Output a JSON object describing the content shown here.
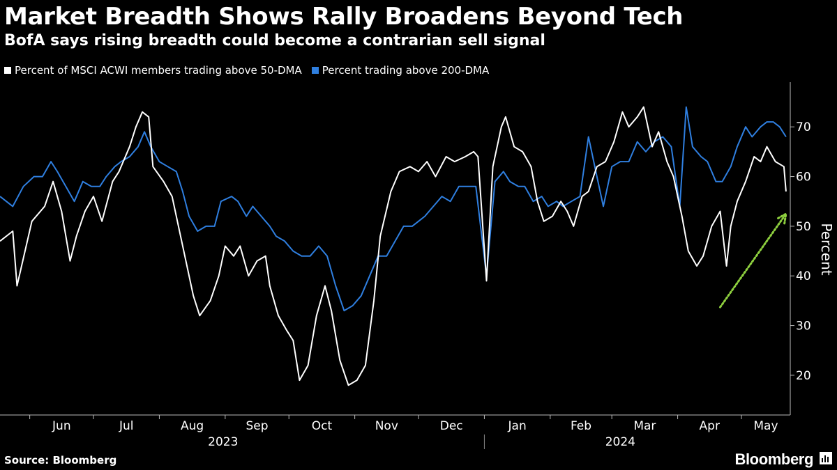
{
  "title": "Market Breadth Shows Rally Broadens Beyond Tech",
  "subtitle": "BofA says rising breadth could become a contrarian sell signal",
  "source": "Source: Bloomberg",
  "brand": "Bloomberg",
  "chart_data": {
    "type": "line",
    "title": "Market Breadth Shows Rally Broadens Beyond Tech",
    "subtitle": "BofA says rising breadth could become a contrarian sell signal",
    "ylabel": "Percent",
    "ylim": [
      12,
      79
    ],
    "yticks": [
      20,
      30,
      40,
      50,
      60,
      70
    ],
    "y_axis_side": "right",
    "grid": false,
    "legend_position": "top-left",
    "x_range": [
      "2023-05-18",
      "2024-05-24"
    ],
    "x_tick_labels": [
      "Jun",
      "Jul",
      "Aug",
      "Sep",
      "Oct",
      "Nov",
      "Dec",
      "Jan",
      "Feb",
      "Mar",
      "Apr",
      "May"
    ],
    "x_year_labels": [
      "2023",
      "2024"
    ],
    "series": [
      {
        "name": "Percent of MSCI ACWI members trading above 50-DMA",
        "color": "#ffffff",
        "points": [
          [
            "2023-05-18",
            47
          ],
          [
            "2023-05-24",
            49
          ],
          [
            "2023-05-26",
            38
          ],
          [
            "2023-06-02",
            51
          ],
          [
            "2023-06-08",
            54
          ],
          [
            "2023-06-12",
            59
          ],
          [
            "2023-06-16",
            53
          ],
          [
            "2023-06-20",
            43
          ],
          [
            "2023-06-23",
            48
          ],
          [
            "2023-06-27",
            53
          ],
          [
            "2023-07-01",
            56
          ],
          [
            "2023-07-05",
            51
          ],
          [
            "2023-07-10",
            59
          ],
          [
            "2023-07-13",
            61
          ],
          [
            "2023-07-18",
            66
          ],
          [
            "2023-07-21",
            70
          ],
          [
            "2023-07-24",
            73
          ],
          [
            "2023-07-27",
            72
          ],
          [
            "2023-07-29",
            62
          ],
          [
            "2023-08-03",
            59
          ],
          [
            "2023-08-07",
            56
          ],
          [
            "2023-08-11",
            48
          ],
          [
            "2023-08-17",
            36
          ],
          [
            "2023-08-20",
            32
          ],
          [
            "2023-08-25",
            35
          ],
          [
            "2023-08-29",
            40
          ],
          [
            "2023-09-01",
            46
          ],
          [
            "2023-09-05",
            44
          ],
          [
            "2023-09-08",
            46
          ],
          [
            "2023-09-12",
            40
          ],
          [
            "2023-09-16",
            43
          ],
          [
            "2023-09-20",
            44
          ],
          [
            "2023-09-22",
            38
          ],
          [
            "2023-09-26",
            32
          ],
          [
            "2023-09-30",
            29
          ],
          [
            "2023-10-03",
            27
          ],
          [
            "2023-10-06",
            19
          ],
          [
            "2023-10-10",
            22
          ],
          [
            "2023-10-14",
            32
          ],
          [
            "2023-10-18",
            38
          ],
          [
            "2023-10-21",
            33
          ],
          [
            "2023-10-25",
            23
          ],
          [
            "2023-10-29",
            18
          ],
          [
            "2023-11-02",
            19
          ],
          [
            "2023-11-06",
            22
          ],
          [
            "2023-11-10",
            35
          ],
          [
            "2023-11-13",
            48
          ],
          [
            "2023-11-18",
            57
          ],
          [
            "2023-11-22",
            61
          ],
          [
            "2023-11-27",
            62
          ],
          [
            "2023-12-01",
            61
          ],
          [
            "2023-12-05",
            63
          ],
          [
            "2023-12-09",
            60
          ],
          [
            "2023-12-14",
            64
          ],
          [
            "2023-12-18",
            63
          ],
          [
            "2023-12-23",
            64
          ],
          [
            "2023-12-27",
            65
          ],
          [
            "2023-12-29",
            64
          ],
          [
            "2024-01-02",
            39
          ],
          [
            "2024-01-05",
            62
          ],
          [
            "2024-01-09",
            70
          ],
          [
            "2024-01-11",
            72
          ],
          [
            "2024-01-15",
            66
          ],
          [
            "2024-01-19",
            65
          ],
          [
            "2024-01-23",
            62
          ],
          [
            "2024-01-26",
            55
          ],
          [
            "2024-01-29",
            51
          ],
          [
            "2024-02-02",
            52
          ],
          [
            "2024-02-06",
            55
          ],
          [
            "2024-02-09",
            53
          ],
          [
            "2024-02-12",
            50
          ],
          [
            "2024-02-16",
            56
          ],
          [
            "2024-02-19",
            57
          ],
          [
            "2024-02-23",
            62
          ],
          [
            "2024-02-27",
            63
          ],
          [
            "2024-03-02",
            67
          ],
          [
            "2024-03-06",
            73
          ],
          [
            "2024-03-09",
            70
          ],
          [
            "2024-03-13",
            72
          ],
          [
            "2024-03-16",
            74
          ],
          [
            "2024-03-20",
            66
          ],
          [
            "2024-03-23",
            69
          ],
          [
            "2024-03-27",
            63
          ],
          [
            "2024-03-30",
            60
          ],
          [
            "2024-04-03",
            52
          ],
          [
            "2024-04-06",
            45
          ],
          [
            "2024-04-10",
            42
          ],
          [
            "2024-04-13",
            44
          ],
          [
            "2024-04-17",
            50
          ],
          [
            "2024-04-21",
            53
          ],
          [
            "2024-04-24",
            42
          ],
          [
            "2024-04-26",
            50
          ],
          [
            "2024-04-29",
            55
          ],
          [
            "2024-05-03",
            59
          ],
          [
            "2024-05-07",
            64
          ],
          [
            "2024-05-10",
            63
          ],
          [
            "2024-05-13",
            66
          ],
          [
            "2024-05-17",
            63
          ],
          [
            "2024-05-21",
            62
          ],
          [
            "2024-05-22",
            57
          ]
        ]
      },
      {
        "name": "Percent trading above 200-DMA",
        "color": "#2f7fe0",
        "points": [
          [
            "2023-05-18",
            56
          ],
          [
            "2023-05-24",
            54
          ],
          [
            "2023-05-29",
            58
          ],
          [
            "2023-06-03",
            60
          ],
          [
            "2023-06-07",
            60
          ],
          [
            "2023-06-11",
            63
          ],
          [
            "2023-06-14",
            61
          ],
          [
            "2023-06-18",
            58
          ],
          [
            "2023-06-22",
            55
          ],
          [
            "2023-06-26",
            59
          ],
          [
            "2023-06-30",
            58
          ],
          [
            "2023-07-04",
            58
          ],
          [
            "2023-07-07",
            60
          ],
          [
            "2023-07-11",
            62
          ],
          [
            "2023-07-14",
            63
          ],
          [
            "2023-07-18",
            64
          ],
          [
            "2023-07-22",
            66
          ],
          [
            "2023-07-25",
            69
          ],
          [
            "2023-07-28",
            66
          ],
          [
            "2023-08-01",
            63
          ],
          [
            "2023-08-05",
            62
          ],
          [
            "2023-08-09",
            61
          ],
          [
            "2023-08-12",
            57
          ],
          [
            "2023-08-15",
            52
          ],
          [
            "2023-08-19",
            49
          ],
          [
            "2023-08-23",
            50
          ],
          [
            "2023-08-27",
            50
          ],
          [
            "2023-08-30",
            55
          ],
          [
            "2023-09-04",
            56
          ],
          [
            "2023-09-07",
            55
          ],
          [
            "2023-09-11",
            52
          ],
          [
            "2023-09-14",
            54
          ],
          [
            "2023-09-18",
            52
          ],
          [
            "2023-09-22",
            50
          ],
          [
            "2023-09-25",
            48
          ],
          [
            "2023-09-29",
            47
          ],
          [
            "2023-10-03",
            45
          ],
          [
            "2023-10-07",
            44
          ],
          [
            "2023-10-11",
            44
          ],
          [
            "2023-10-15",
            46
          ],
          [
            "2023-10-19",
            44
          ],
          [
            "2023-10-23",
            38
          ],
          [
            "2023-10-27",
            33
          ],
          [
            "2023-10-31",
            34
          ],
          [
            "2023-11-04",
            36
          ],
          [
            "2023-11-08",
            40
          ],
          [
            "2023-11-12",
            44
          ],
          [
            "2023-11-16",
            44
          ],
          [
            "2023-11-20",
            47
          ],
          [
            "2023-11-24",
            50
          ],
          [
            "2023-11-28",
            50
          ],
          [
            "2023-12-01",
            51
          ],
          [
            "2023-12-04",
            52
          ],
          [
            "2023-12-08",
            54
          ],
          [
            "2023-12-12",
            56
          ],
          [
            "2023-12-16",
            55
          ],
          [
            "2023-12-20",
            58
          ],
          [
            "2023-12-24",
            58
          ],
          [
            "2023-12-28",
            58
          ],
          [
            "2024-01-02",
            40
          ],
          [
            "2024-01-06",
            59
          ],
          [
            "2024-01-10",
            61
          ],
          [
            "2024-01-13",
            59
          ],
          [
            "2024-01-17",
            58
          ],
          [
            "2024-01-20",
            58
          ],
          [
            "2024-01-24",
            55
          ],
          [
            "2024-01-28",
            56
          ],
          [
            "2024-01-31",
            54
          ],
          [
            "2024-02-04",
            55
          ],
          [
            "2024-02-07",
            54
          ],
          [
            "2024-02-11",
            55
          ],
          [
            "2024-02-15",
            56
          ],
          [
            "2024-02-19",
            68
          ],
          [
            "2024-02-23",
            60
          ],
          [
            "2024-02-26",
            54
          ],
          [
            "2024-03-01",
            62
          ],
          [
            "2024-03-05",
            63
          ],
          [
            "2024-03-09",
            63
          ],
          [
            "2024-03-13",
            67
          ],
          [
            "2024-03-17",
            65
          ],
          [
            "2024-03-21",
            67
          ],
          [
            "2024-03-25",
            68
          ],
          [
            "2024-03-29",
            66
          ],
          [
            "2024-04-02",
            54
          ],
          [
            "2024-04-05",
            74
          ],
          [
            "2024-04-08",
            66
          ],
          [
            "2024-04-12",
            64
          ],
          [
            "2024-04-15",
            63
          ],
          [
            "2024-04-19",
            59
          ],
          [
            "2024-04-22",
            59
          ],
          [
            "2024-04-26",
            62
          ],
          [
            "2024-04-29",
            66
          ],
          [
            "2024-05-03",
            70
          ],
          [
            "2024-05-06",
            68
          ],
          [
            "2024-05-10",
            70
          ],
          [
            "2024-05-13",
            71
          ],
          [
            "2024-05-16",
            71
          ],
          [
            "2024-05-19",
            70
          ],
          [
            "2024-05-22",
            68
          ]
        ]
      }
    ],
    "annotation": {
      "type": "trend-arrow",
      "style": "dotted",
      "color": "#8fd13f",
      "from": [
        "2024-04-21",
        33.7
      ],
      "to": [
        "2024-05-22",
        52.5
      ]
    }
  }
}
